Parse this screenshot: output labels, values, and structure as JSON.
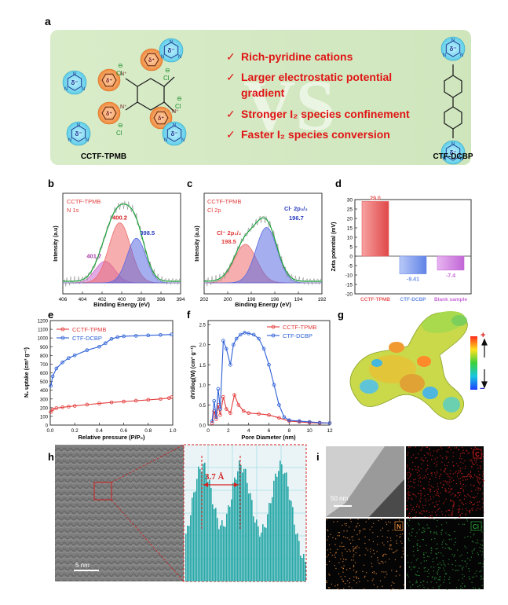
{
  "panel_labels": {
    "a": "a",
    "b": "b",
    "c": "c",
    "d": "d",
    "e": "e",
    "f": "f",
    "g": "g",
    "h": "h",
    "i": "i"
  },
  "panel_a": {
    "left_name": "CCTF-TPMB",
    "right_name": "CTF-DCBP",
    "vs": "VS",
    "bullets": [
      "Rich-pyridine cations",
      "Larger electrostatic potential",
      "gradient",
      "Stronger I₂ species confinement",
      "Faster I₂ species conversion"
    ],
    "check": "✓",
    "triazine_atom": "N",
    "delta_neg": "δ⁻",
    "delta_pos": "δ⁺",
    "cl": "Cl",
    "minus": "⊖",
    "n_plus": "N⁺"
  },
  "chart_data": [
    {
      "panel": "b",
      "type": "line",
      "sample": "CCTF-TPMB",
      "core": "N 1s",
      "xlabel": "Binding Energy (eV)",
      "ylabel": "Intensity (a.u)",
      "xlim": [
        406,
        394
      ],
      "x_ticks": [
        "406",
        "404",
        "402",
        "400",
        "398",
        "396",
        "394"
      ],
      "peaks": [
        {
          "label": "401.7",
          "center": 401.7,
          "height": 0.28,
          "width": 1.0,
          "color": "#cc66cc"
        },
        {
          "label": "400.2",
          "center": 400.2,
          "height": 0.78,
          "width": 1.1,
          "color": "#ee6b6b"
        },
        {
          "label": "398.5",
          "center": 398.5,
          "height": 0.58,
          "width": 0.95,
          "color": "#5b6be0"
        }
      ]
    },
    {
      "panel": "c",
      "type": "line",
      "sample": "CCTF-TPMB",
      "core": "Cl 2p",
      "xlabel": "Binding Energy (eV)",
      "ylabel": "Intensity (a.u)",
      "xlim": [
        202,
        192
      ],
      "x_ticks": [
        "202",
        "200",
        "198",
        "196",
        "194",
        "192"
      ],
      "peak_labels": [
        {
          "species": "Cl⁻ 2p₃/₂",
          "value": "198.5"
        },
        {
          "species": "Cl· 2p₃/₂",
          "value": "196.7"
        }
      ],
      "peaks": [
        {
          "center": 198.5,
          "height": 0.5,
          "width": 0.95,
          "color": "#ee6b6b"
        },
        {
          "center": 196.7,
          "height": 0.72,
          "width": 0.9,
          "color": "#5b6be0"
        }
      ]
    },
    {
      "panel": "d",
      "type": "bar",
      "ylabel": "Zeta potential (mV)",
      "ylim": [
        -20,
        30
      ],
      "y_ticks": [
        30,
        25,
        20,
        15,
        10,
        5,
        0,
        -5,
        -10,
        -15,
        -20
      ],
      "categories": [
        "CCTF-TPMB",
        "CTF-DCBP",
        "Blank sample"
      ],
      "values": [
        29.0,
        -9.41,
        -7.4
      ],
      "value_labels": [
        "29.0",
        "-9.41",
        "-7.4"
      ],
      "colors": [
        "#e85c5c",
        "#6b8ee8",
        "#c86bd8"
      ]
    },
    {
      "panel": "e",
      "type": "line",
      "xlabel": "Relative pressure (P/P₀)",
      "ylabel": "N₂ uptake (cm³ g⁻¹)",
      "xlim": [
        0,
        1.0
      ],
      "ylim": [
        0,
        1200
      ],
      "x_ticks": [
        "0.0",
        "0.2",
        "0.4",
        "0.6",
        "0.8",
        "1.0"
      ],
      "y_ticks": [
        "0",
        "100",
        "200",
        "300",
        "400",
        "500",
        "600",
        "700",
        "800",
        "900",
        "1000",
        "1100",
        "1200"
      ],
      "series": [
        {
          "name": "CCTF-TPMB",
          "color": "#e23b3b",
          "x": [
            0.005,
            0.02,
            0.05,
            0.1,
            0.15,
            0.2,
            0.3,
            0.4,
            0.5,
            0.6,
            0.7,
            0.8,
            0.9,
            0.97,
            0.99
          ],
          "y": [
            150,
            180,
            195,
            205,
            212,
            220,
            235,
            248,
            260,
            270,
            280,
            290,
            300,
            310,
            320
          ]
        },
        {
          "name": "CTF-DCBP",
          "color": "#2c5fd6",
          "x": [
            0.005,
            0.02,
            0.05,
            0.1,
            0.15,
            0.2,
            0.3,
            0.4,
            0.45,
            0.5,
            0.55,
            0.6,
            0.7,
            0.8,
            0.9,
            0.99
          ],
          "y": [
            450,
            560,
            650,
            720,
            770,
            800,
            860,
            900,
            940,
            990,
            1010,
            1020,
            1025,
            1030,
            1035,
            1040
          ]
        }
      ]
    },
    {
      "panel": "f",
      "type": "line",
      "xlabel": "Pore Diameter (nm)",
      "ylabel": "dV/dlog(W) (cm³ g⁻¹)",
      "xlim": [
        0,
        12
      ],
      "ylim": [
        0,
        2.6
      ],
      "x_ticks": [
        "0",
        "2",
        "4",
        "6",
        "8",
        "10",
        "12"
      ],
      "y_ticks": [
        "0.0",
        "0.5",
        "1.0",
        "1.5",
        "2.0",
        "2.5"
      ],
      "series": [
        {
          "name": "CCTF-TPMB",
          "color": "#e23b3b",
          "x": [
            0.4,
            0.6,
            0.8,
            1.0,
            1.2,
            1.5,
            1.8,
            2.2,
            2.6,
            3.0,
            3.5,
            4.0,
            5.0,
            6.0,
            7.0,
            8.0,
            9.0,
            10,
            11,
            12
          ],
          "y": [
            0.05,
            0.35,
            0.15,
            0.5,
            0.25,
            0.7,
            0.4,
            0.3,
            0.75,
            0.5,
            0.35,
            0.3,
            0.28,
            0.25,
            0.18,
            0.1,
            0.08,
            0.06,
            0.05,
            0.05
          ]
        },
        {
          "name": "CTF-DCBP",
          "color": "#2c5fd6",
          "x": [
            0.4,
            0.6,
            0.8,
            1.0,
            1.2,
            1.5,
            1.8,
            2.2,
            2.5,
            2.8,
            3.2,
            3.6,
            4.0,
            4.5,
            5.0,
            5.5,
            6.0,
            6.5,
            7.0,
            7.5,
            8.0,
            9.0,
            10,
            11,
            12
          ],
          "y": [
            0.1,
            0.6,
            0.2,
            0.9,
            0.4,
            2.1,
            1.9,
            1.5,
            2.0,
            2.15,
            2.25,
            2.3,
            2.28,
            2.25,
            2.15,
            1.9,
            1.5,
            1.0,
            0.5,
            0.2,
            0.12,
            0.1,
            0.08,
            0.06,
            0.05
          ]
        }
      ]
    }
  ],
  "panel_g": {
    "plus": "+",
    "minus": "−"
  },
  "panel_h": {
    "spacing": "3.7 Å",
    "scale": "5 nm"
  },
  "panel_i": {
    "scale": "50 nm",
    "maps": [
      "C",
      "N",
      "Cl"
    ],
    "map_colors": [
      "#d61f1f",
      "#e58a3c",
      "#2e9b3b"
    ]
  }
}
